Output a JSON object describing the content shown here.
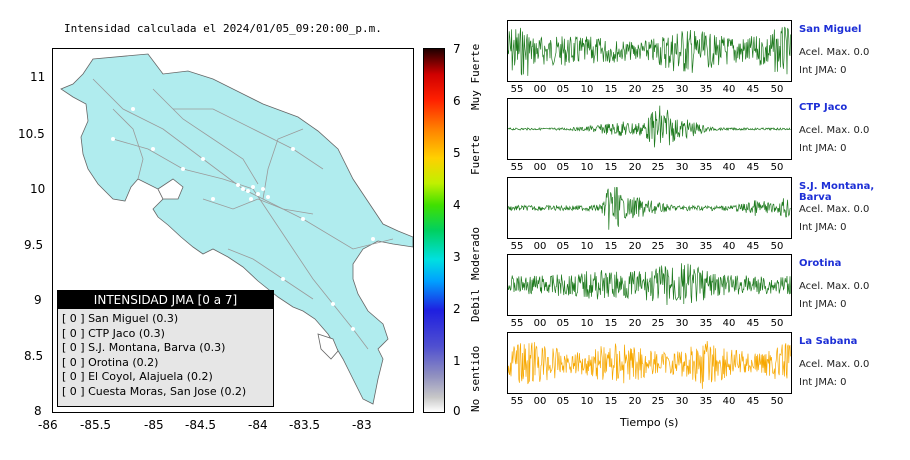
{
  "map": {
    "title": "Intensidad calculada el 2024/01/05_09:20:00_p.m.",
    "lat_ticks": [
      "11",
      "10.5",
      "10",
      "9.5",
      "9",
      "8.5",
      "8"
    ],
    "lon_ticks": [
      "-86",
      "-85.5",
      "-85",
      "-84.5",
      "-84",
      "-83.5",
      "-83"
    ],
    "land_color": "#b0ecee",
    "legend": {
      "title": "INTENSIDAD JMA [0 a 7]",
      "items": [
        {
          "value": "[ 0 ]",
          "label": "San Miguel (0.3)"
        },
        {
          "value": "[ 0 ]",
          "label": "CTP Jaco (0.3)"
        },
        {
          "value": "[ 0 ]",
          "label": "S.J. Montana, Barva (0.3)"
        },
        {
          "value": "[ 0 ]",
          "label": "Orotina (0.2)"
        },
        {
          "value": "[ 0 ]",
          "label": "El Coyol, Alajuela (0.2)"
        },
        {
          "value": "[ 0 ]",
          "label": "Cuesta Moras, San Jose (0.2)"
        }
      ]
    }
  },
  "colorbar": {
    "ticks": [
      "7",
      "6",
      "5",
      "4",
      "3",
      "2",
      "1",
      "0"
    ],
    "labels": [
      "Muy Fuerte",
      "Fuerte",
      "Moderado",
      "Debil",
      "No sentido"
    ]
  },
  "stations": [
    {
      "name": "San Miguel",
      "acel": "Acel. Max. 0.0",
      "int": "Int JMA: 0",
      "color": "#1e7a1e"
    },
    {
      "name": "CTP Jaco",
      "acel": "Acel. Max. 0.0",
      "int": "Int JMA: 0",
      "color": "#1e7a1e"
    },
    {
      "name": "S.J. Montana, Barva",
      "acel": "Acel. Max. 0.0",
      "int": "Int JMA: 0",
      "color": "#1e7a1e"
    },
    {
      "name": "Orotina",
      "acel": "Acel. Max. 0.0",
      "int": "Int JMA: 0",
      "color": "#1e7a1e"
    },
    {
      "name": "La Sabana",
      "acel": "Acel. Max. 0.0",
      "int": "Int JMA: 0",
      "color": "#f7a800"
    }
  ],
  "time_ticks": [
    [
      "55",
      "00",
      "05",
      "10",
      "15",
      "20",
      "25",
      "30",
      "35",
      "40",
      "45",
      "50"
    ],
    [
      "55",
      "00",
      "05",
      "10",
      "15",
      "20",
      "25",
      "30",
      "35",
      "40",
      "45",
      "50"
    ],
    [
      "55",
      "00",
      "05",
      "10",
      "15",
      "20",
      "25",
      "30",
      "35",
      "40",
      "45",
      "50"
    ],
    [
      "55",
      "00",
      "05",
      "10",
      "15",
      "20",
      "25",
      "30",
      "35",
      "40",
      "45",
      "50"
    ],
    [
      "55",
      "00",
      "05",
      "10",
      "15",
      "20",
      "25",
      "30",
      "35",
      "40",
      "45",
      "50"
    ]
  ],
  "xlabel": "Tiempo (s)"
}
